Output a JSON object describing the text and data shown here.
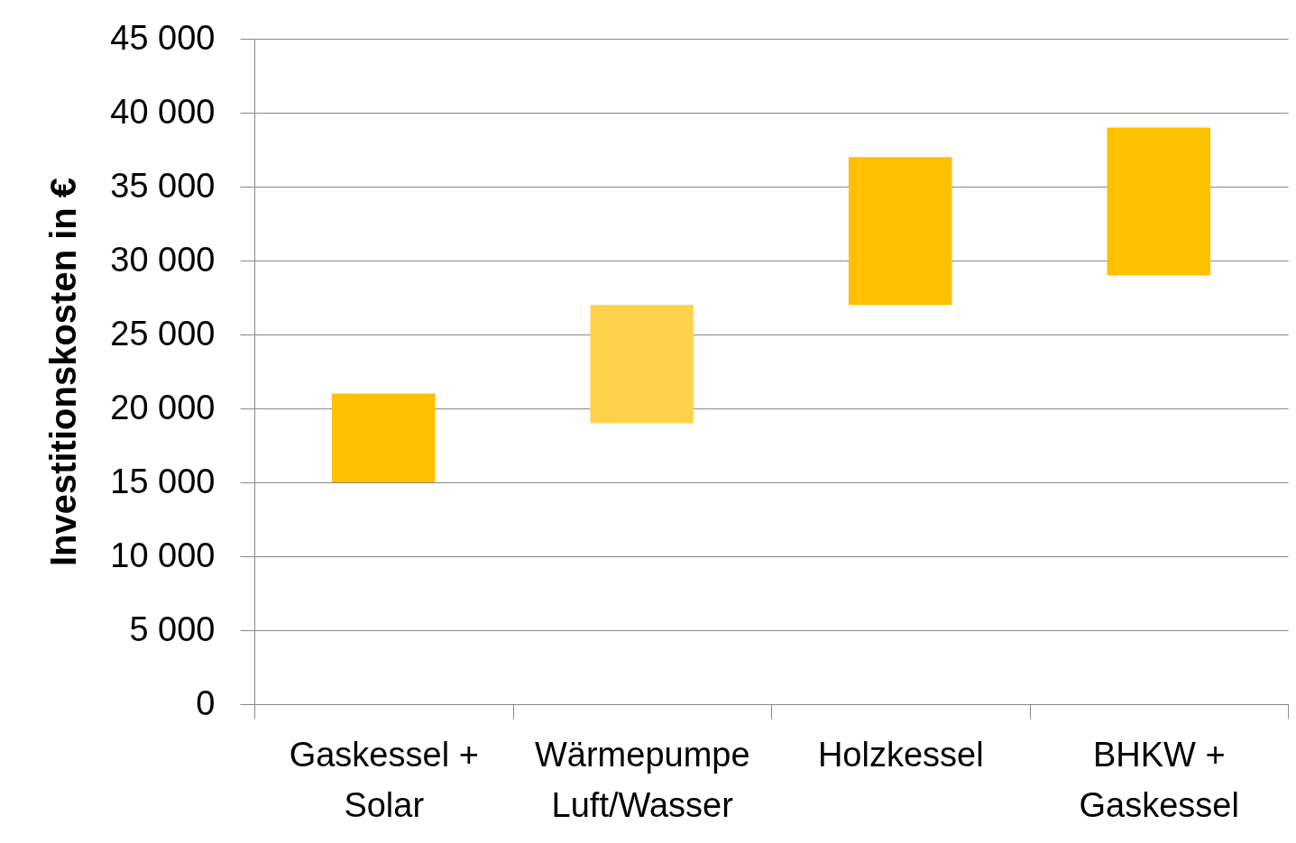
{
  "chart_data": {
    "type": "bar",
    "ylabel": "Investitionskosten  in €",
    "categories": [
      "Gaskessel +\nSolar",
      "Wärmepumpe\nLuft/Wasser",
      "Holzkessel",
      "BHKW +\nGaskessel"
    ],
    "base": [
      15000,
      19000,
      27000,
      29000
    ],
    "values": [
      6000,
      8000,
      10000,
      10000
    ],
    "colors": [
      "#ffc000",
      "#ffd24d",
      "#ffc000",
      "#ffc000"
    ],
    "ylim": [
      0,
      45000
    ],
    "yticks": [
      0,
      5000,
      10000,
      15000,
      20000,
      25000,
      30000,
      35000,
      40000,
      45000
    ],
    "grid": "y"
  }
}
